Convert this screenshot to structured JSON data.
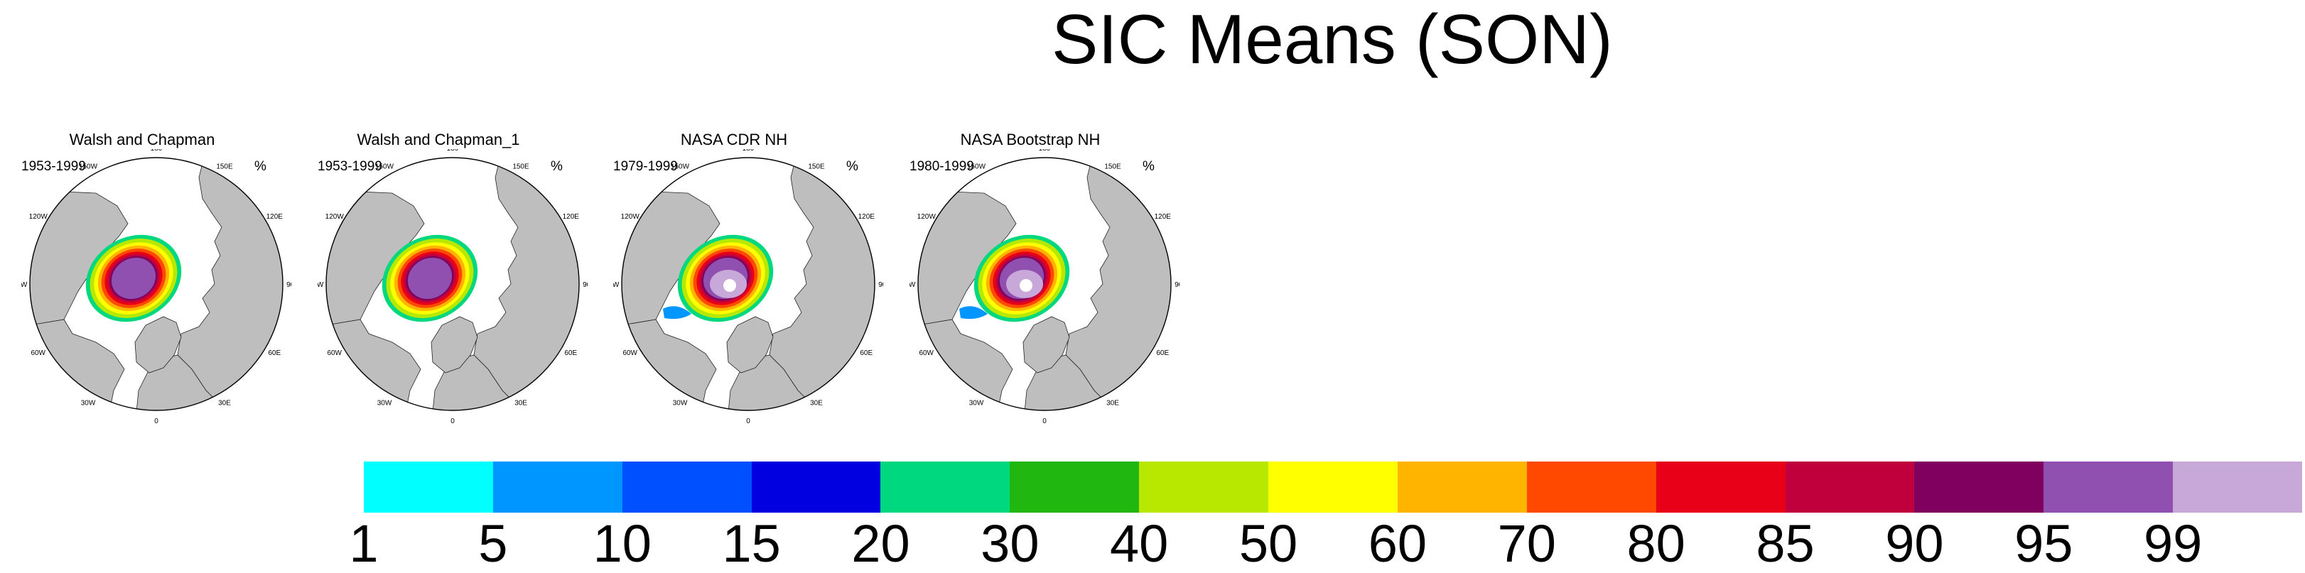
{
  "title": "SIC Means (SON)",
  "panels": [
    {
      "title": "Walsh and Chapman",
      "years": "1953-1999",
      "unit": "%",
      "hole": false
    },
    {
      "title": "Walsh and Chapman_1",
      "years": "1953-1999",
      "unit": "%",
      "hole": false
    },
    {
      "title": "NASA CDR NH",
      "years": "1979-1999",
      "unit": "%",
      "hole": true
    },
    {
      "title": "NASA Bootstrap NH",
      "years": "1980-1999",
      "unit": "%",
      "hole": true
    }
  ],
  "lon_labels": [
    "180",
    "150E",
    "120E",
    "90E",
    "60E",
    "30E",
    "0",
    "30W",
    "60W",
    "90W",
    "120W",
    "150W"
  ],
  "colorbar": {
    "ticks": [
      "1",
      "5",
      "10",
      "15",
      "20",
      "30",
      "40",
      "50",
      "60",
      "70",
      "80",
      "85",
      "90",
      "95",
      "99"
    ],
    "colors": [
      "#00ffff",
      "#0096ff",
      "#0050ff",
      "#0000e0",
      "#00d880",
      "#20b810",
      "#b8e800",
      "#ffff00",
      "#ffb400",
      "#ff4800",
      "#e80018",
      "#c0003c",
      "#800060",
      "#9050b0",
      "#c8a8d8"
    ]
  },
  "map_colors": {
    "land": "#bebebe",
    "ocean": "#ffffff"
  }
}
